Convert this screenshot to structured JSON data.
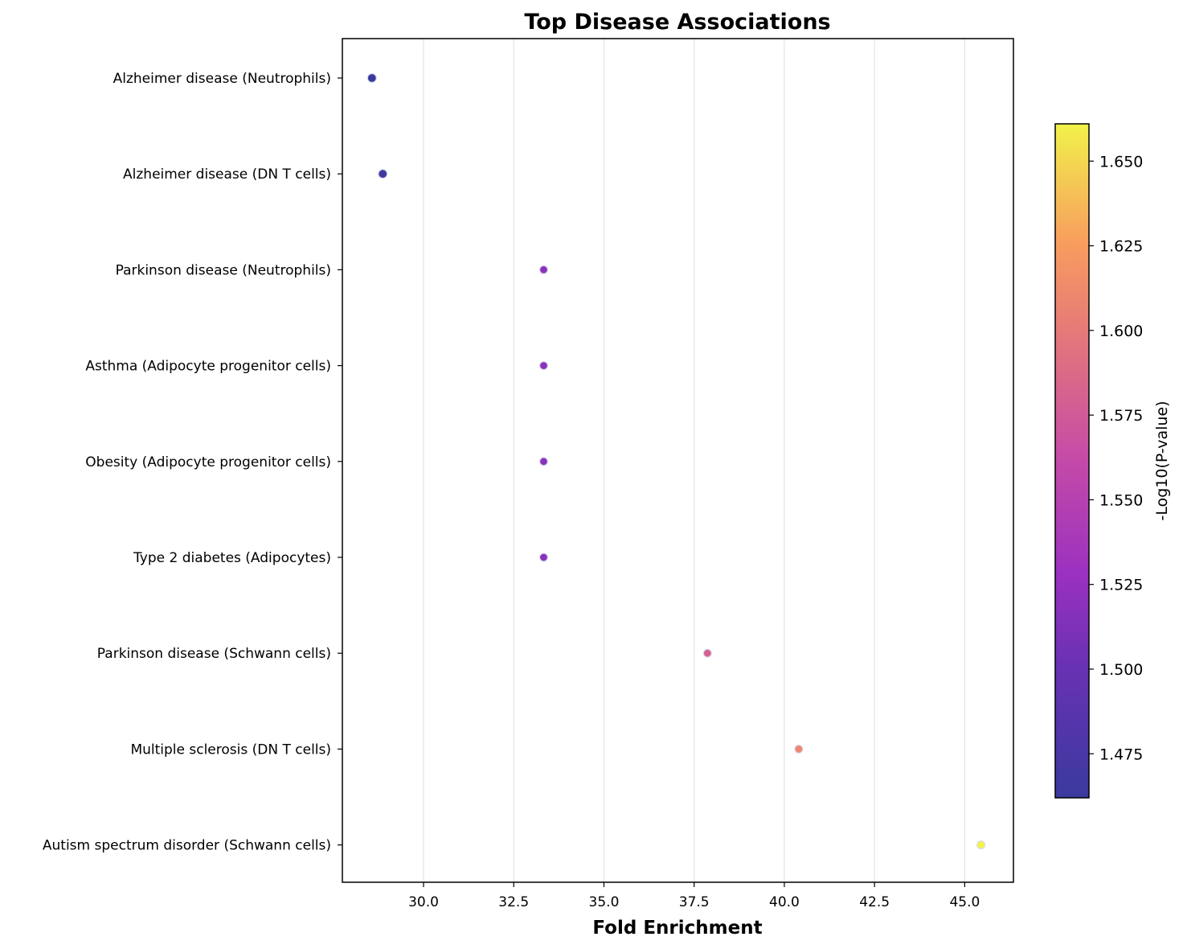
{
  "chart_data": {
    "type": "scatter",
    "title": "Top Disease Associations",
    "xlabel": "Fold Enrichment",
    "ylabel": "",
    "xlim": [
      27.75,
      46.35
    ],
    "x_ticks": [
      "30.0",
      "32.5",
      "35.0",
      "37.5",
      "40.0",
      "42.5",
      "45.0"
    ],
    "x_tick_values": [
      30.0,
      32.5,
      35.0,
      37.5,
      40.0,
      42.5,
      45.0
    ],
    "grid": "x-only",
    "colormap": "plasma",
    "colorbar": {
      "label": "-Log10(P-value)",
      "range": [
        1.462,
        1.661
      ],
      "ticks": [
        "1.475",
        "1.500",
        "1.525",
        "1.550",
        "1.575",
        "1.600",
        "1.625",
        "1.650"
      ],
      "tick_values": [
        1.475,
        1.5,
        1.525,
        1.55,
        1.575,
        1.6,
        1.625,
        1.65
      ]
    },
    "categories": [
      "Alzheimer disease (Neutrophils)",
      "Alzheimer disease (DN T cells)",
      "Parkinson disease (Neutrophils)",
      "Asthma (Adipocyte progenitor cells)",
      "Obesity (Adipocyte progenitor cells)",
      "Type 2 diabetes (Adipocytes)",
      "Parkinson disease (Schwann cells)",
      "Multiple sclerosis (DN T cells)",
      "Autism spectrum disorder (Schwann cells)"
    ],
    "x": [
      28.57,
      28.87,
      33.33,
      33.33,
      33.33,
      33.33,
      37.87,
      40.4,
      45.45
    ],
    "neg_log10_p": [
      1.462,
      1.466,
      1.52,
      1.52,
      1.52,
      1.52,
      1.58,
      1.61,
      1.661
    ],
    "point_size": [
      8,
      8,
      7,
      7,
      7,
      7,
      7,
      7,
      7
    ]
  }
}
